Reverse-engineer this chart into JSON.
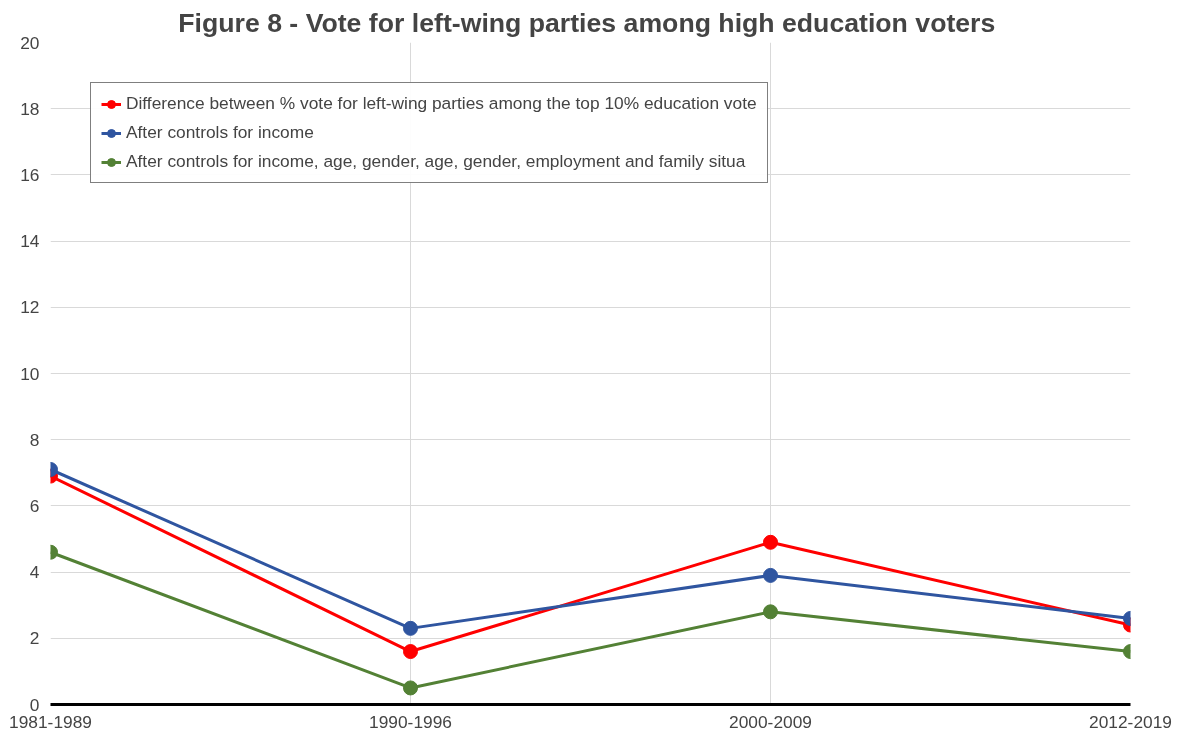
{
  "chart_data": {
    "type": "line",
    "title": "Figure 8 -  Vote for left-wing parties among high education voters",
    "categories": [
      "1981-1989",
      "1990-1996",
      "2000-2009",
      "2012-2019"
    ],
    "series": [
      {
        "name": "Difference between % vote for left-wing parties among the top 10% education vote",
        "color": "#ff0000",
        "values": [
          6.9,
          1.6,
          4.9,
          2.4
        ]
      },
      {
        "name": "After controls for income",
        "color": "#2f55a0",
        "values": [
          7.1,
          2.3,
          3.9,
          2.6
        ]
      },
      {
        "name": "After controls for income, age, gender, age, gender, employment and family situa",
        "color": "#538135",
        "values": [
          4.6,
          0.5,
          2.8,
          1.6
        ]
      }
    ],
    "ylim": [
      0,
      20
    ],
    "yticks": [
      0,
      2,
      4,
      6,
      8,
      10,
      12,
      14,
      16,
      18,
      20
    ],
    "grid": true,
    "legend": "top left",
    "marker": "circle",
    "line_style": "solid"
  }
}
